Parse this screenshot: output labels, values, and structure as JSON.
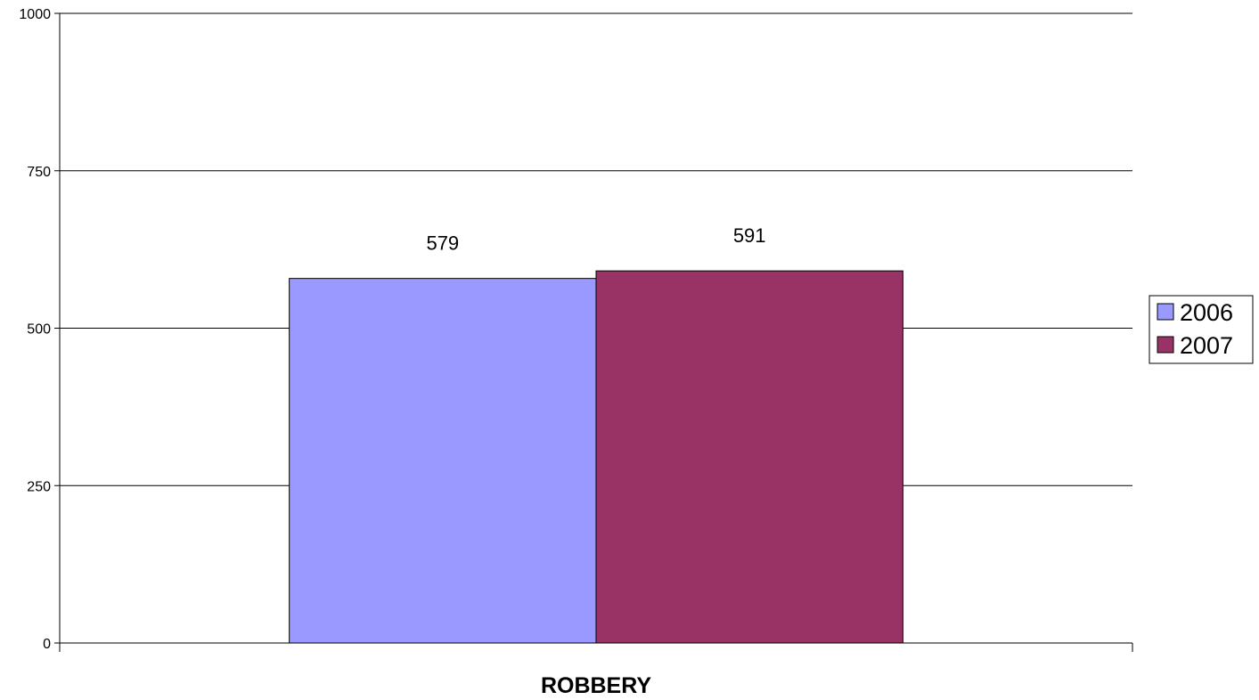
{
  "chart_data": {
    "type": "bar",
    "title": "",
    "xlabel": "",
    "ylabel": "",
    "categories": [
      "ROBBERY"
    ],
    "series": [
      {
        "name": "2006",
        "values": [
          579
        ],
        "color": "#9999FF"
      },
      {
        "name": "2007",
        "values": [
          591
        ],
        "color": "#993366"
      }
    ],
    "ylim": [
      0,
      1000
    ],
    "yticks": [
      0,
      250,
      500,
      750,
      1000
    ],
    "grid": true,
    "legend_position": "right",
    "data_labels": true
  }
}
